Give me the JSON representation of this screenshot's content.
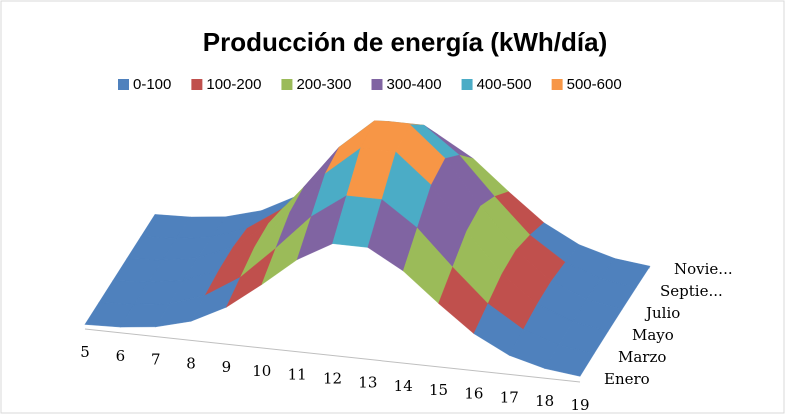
{
  "chart_data": {
    "type": "surface",
    "title": "Producción de energía (kWh/día)",
    "categories": [
      "5",
      "6",
      "7",
      "8",
      "9",
      "10",
      "11",
      "12",
      "13",
      "14",
      "15",
      "16",
      "17",
      "18",
      "19"
    ],
    "series": [
      {
        "name": "Enero",
        "values": [
          2,
          6,
          20,
          52,
          114,
          205,
          304,
          372,
          372,
          304,
          205,
          114,
          52,
          20,
          6
        ]
      },
      {
        "name": "Marzo",
        "values": [
          2,
          8,
          24,
          65,
          141,
          254,
          376,
          461,
          461,
          376,
          254,
          141,
          65,
          24,
          8
        ]
      },
      {
        "name": "Mayo",
        "values": [
          2,
          9,
          29,
          77,
          168,
          302,
          448,
          549,
          549,
          448,
          302,
          168,
          77,
          29,
          9
        ]
      },
      {
        "name": "Julio",
        "values": [
          2,
          9,
          30,
          80,
          174,
          313,
          464,
          568,
          568,
          464,
          313,
          174,
          80,
          30,
          9
        ]
      },
      {
        "name": "Septie...",
        "values": [
          2,
          8,
          26,
          69,
          150,
          270,
          400,
          490,
          490,
          400,
          270,
          150,
          69,
          26,
          8
        ]
      },
      {
        "name": "Novie...",
        "values": [
          2,
          6,
          20,
          54,
          117,
          211,
          312,
          382,
          382,
          312,
          211,
          117,
          54,
          20,
          6
        ]
      }
    ],
    "zlim": [
      0,
      600
    ],
    "legend": [
      {
        "name": "0-100",
        "color": "#4f81bd",
        "range": [
          0,
          100
        ]
      },
      {
        "name": "100-200",
        "color": "#c0504d",
        "range": [
          100,
          200
        ]
      },
      {
        "name": "200-300",
        "color": "#9bbb59",
        "range": [
          200,
          300
        ]
      },
      {
        "name": "300-400",
        "color": "#8064a2",
        "range": [
          300,
          400
        ]
      },
      {
        "name": "400-500",
        "color": "#4bacc6",
        "range": [
          400,
          500
        ]
      },
      {
        "name": "500-600",
        "color": "#f79646",
        "range": [
          500,
          600
        ]
      }
    ]
  }
}
